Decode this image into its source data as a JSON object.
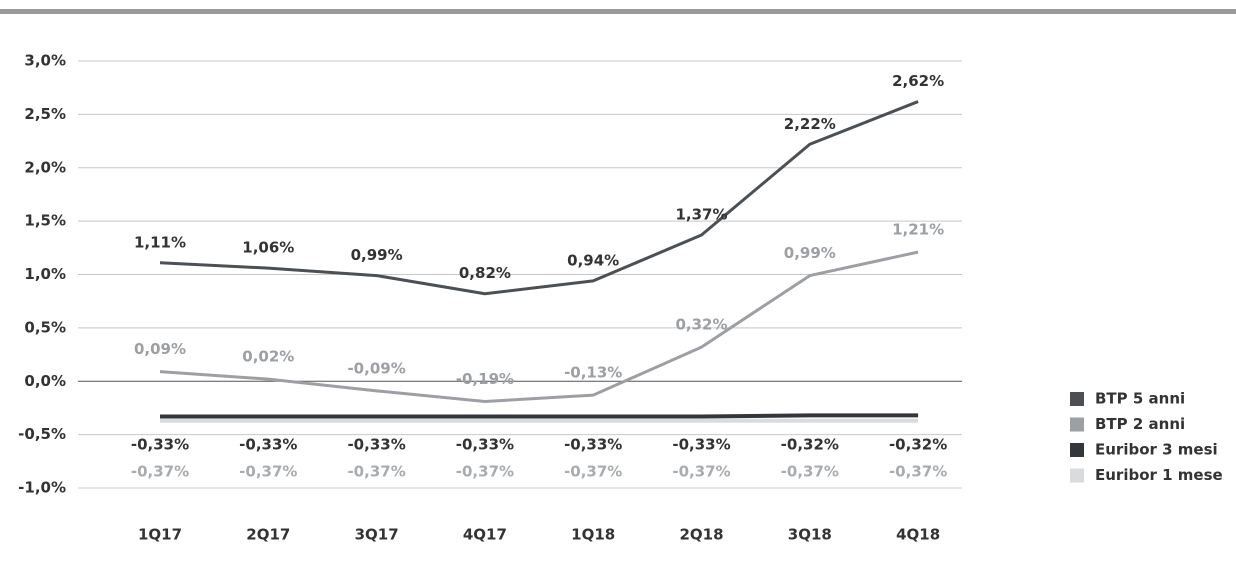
{
  "chart_data": {
    "type": "line",
    "categories": [
      "1Q17",
      "2Q17",
      "3Q17",
      "4Q17",
      "1Q18",
      "2Q18",
      "3Q18",
      "4Q18"
    ],
    "series": [
      {
        "name": "BTP 5 anni",
        "color": "#4b5055",
        "values": [
          1.11,
          1.06,
          0.99,
          0.82,
          0.94,
          1.37,
          2.22,
          2.62
        ],
        "value_labels": [
          "1,11%",
          "1,06%",
          "0,99%",
          "0,82%",
          "0,94%",
          "1,37%",
          "2,22%",
          "2,62%"
        ]
      },
      {
        "name": "BTP 2 anni",
        "color": "#9c9fa3",
        "values": [
          0.09,
          0.02,
          -0.09,
          -0.19,
          -0.13,
          0.32,
          0.99,
          1.21
        ],
        "value_labels": [
          "0,09%",
          "0,02%",
          "-0,09%",
          "-0,19%",
          "-0,13%",
          "0,32%",
          "0,99%",
          "1,21%"
        ]
      },
      {
        "name": "Euribor 3 mesi",
        "color": "#33363a",
        "values": [
          -0.33,
          -0.33,
          -0.33,
          -0.33,
          -0.33,
          -0.33,
          -0.32,
          -0.32
        ],
        "value_labels": [
          "-0,33%",
          "-0,33%",
          "-0,33%",
          "-0,33%",
          "-0,33%",
          "-0,33%",
          "-0,32%",
          "-0,32%"
        ]
      },
      {
        "name": "Euribor 1 mese",
        "color": "#d9dbdd",
        "values": [
          -0.37,
          -0.37,
          -0.37,
          -0.37,
          -0.37,
          -0.37,
          -0.37,
          -0.37
        ],
        "value_labels": [
          "-0,37%",
          "-0,37%",
          "-0,37%",
          "-0,37%",
          "-0,37%",
          "-0,37%",
          "-0,37%",
          "-0,37%"
        ]
      }
    ],
    "ylim": [
      -1,
      3
    ],
    "yticks": [
      {
        "value": -1,
        "label": "-1,0%"
      },
      {
        "value": -0.5,
        "label": "-0,5%"
      },
      {
        "value": 0,
        "label": "0,0%"
      },
      {
        "value": 0.5,
        "label": "0,5%"
      },
      {
        "value": 1,
        "label": "1,0%"
      },
      {
        "value": 1.5,
        "label": "1,5%"
      },
      {
        "value": 2,
        "label": "2,0%"
      },
      {
        "value": 2.5,
        "label": "2,5%"
      },
      {
        "value": 3,
        "label": "3,0%"
      }
    ],
    "grid": true,
    "legend": "right"
  }
}
